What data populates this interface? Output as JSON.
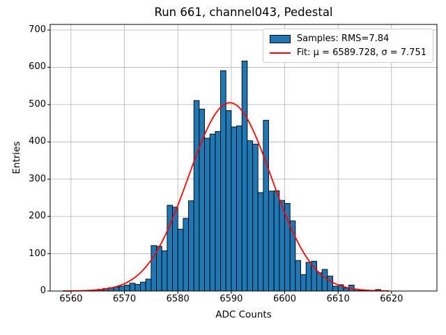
{
  "title": "Run 661, channel043, Pedestal",
  "axes": {
    "xlabel": "ADC Counts",
    "ylabel": "Entries"
  },
  "legend": {
    "samples_label": "Samples: RMS=7.84",
    "fit_label": "Fit: μ = 6589.728, σ = 7.751"
  },
  "colors": {
    "bar_fill": "#1f77b4",
    "bar_edge": "#000000",
    "fit_line": "#ff0000",
    "grid": "#b0b0b0",
    "axis": "#000000",
    "background": "#ffffff",
    "legend_edge": "#cccccc"
  },
  "chart_data": {
    "type": "bar",
    "subtype": "histogram-with-gaussian-fit",
    "title": "Run 661, channel043, Pedestal",
    "xlabel": "ADC Counts",
    "ylabel": "Entries",
    "grid": true,
    "legend_position": "upper right",
    "legend_entries": [
      "Samples: RMS=7.84",
      "Fit: μ = 6589.728, σ = 7.751"
    ],
    "xlim": [
      6556.1,
      6628.5
    ],
    "ylim": [
      0,
      715
    ],
    "xticks": [
      6560,
      6570,
      6580,
      6590,
      6600,
      6610,
      6620
    ],
    "yticks": [
      0,
      100,
      200,
      300,
      400,
      500,
      600,
      700
    ],
    "bin_width": 1,
    "categories": [
      6565,
      6566,
      6567,
      6568,
      6569,
      6570,
      6571,
      6572,
      6573,
      6574,
      6575,
      6576,
      6577,
      6578,
      6579,
      6580,
      6581,
      6582,
      6583,
      6584,
      6585,
      6586,
      6587,
      6588,
      6589,
      6590,
      6591,
      6592,
      6593,
      6594,
      6595,
      6596,
      6597,
      6598,
      6599,
      6600,
      6601,
      6602,
      6603,
      6604,
      6605,
      6606,
      6607,
      6608,
      6609,
      6610,
      6611,
      6612,
      6613,
      6614,
      6615,
      6616,
      6617,
      6618
    ],
    "values": [
      5,
      7,
      9,
      11,
      13,
      16,
      21,
      18,
      24,
      32,
      122,
      120,
      108,
      230,
      225,
      166,
      195,
      242,
      511,
      488,
      410,
      421,
      428,
      591,
      484,
      440,
      443,
      617,
      403,
      394,
      264,
      458,
      268,
      269,
      243,
      235,
      188,
      82,
      44,
      77,
      80,
      49,
      58,
      40,
      13,
      17,
      8,
      16,
      5,
      2,
      2,
      1,
      4,
      1
    ],
    "rms": 7.84,
    "fit": {
      "mu": 6589.728,
      "sigma": 7.751,
      "amplitude": 505,
      "x_start": 6558.5,
      "x_end": 6619.5
    }
  }
}
